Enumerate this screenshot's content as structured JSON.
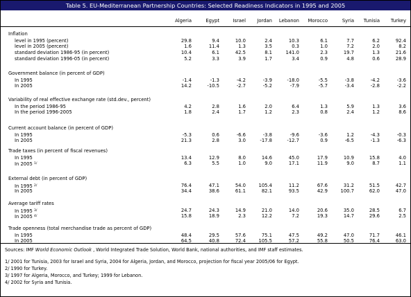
{
  "title": "Table 5. EU-Mediterranean Partnership Countries: Selected Readiness Indicators in 1995 and 2005",
  "columns": [
    "Algeria",
    "Egypt",
    "Israel",
    "Jordan",
    "Lebanon",
    "Morocco",
    "Syria",
    "Tunisia",
    "Turkey"
  ],
  "rows": [
    {
      "kind": "section",
      "label": "Inflation"
    },
    {
      "kind": "data",
      "label": "level in 1995 (percent)",
      "values": [
        "29.8",
        "9.4",
        "10.0",
        "2.4",
        "10.3",
        "6.1",
        "7.7",
        "6.2",
        "92.4"
      ]
    },
    {
      "kind": "data",
      "label": "level in 2005 (percent)",
      "values": [
        "1.6",
        "11.4",
        "1.3",
        "3.5",
        "0.3",
        "1.0",
        "7.2",
        "2.0",
        "8.2"
      ]
    },
    {
      "kind": "data",
      "label": "standard deviation 1986-95 (in percent)",
      "values": [
        "10.4",
        "6.1",
        "42.5",
        "8.1",
        "141.0",
        "2.3",
        "19.7",
        "1.3",
        "21.6"
      ]
    },
    {
      "kind": "data",
      "label": "standard deviation 1996-05 (in percent)",
      "values": [
        "5.2",
        "3.3",
        "3.9",
        "1.7",
        "3.4",
        "0.9",
        "4.8",
        "0.6",
        "28.9"
      ]
    },
    {
      "kind": "section",
      "label": "Government balance (in percent of GDP)"
    },
    {
      "kind": "data",
      "label": "In 1995",
      "values": [
        "-1.4",
        "-1.3",
        "-4.2",
        "-3.9",
        "-18.0",
        "-5.5",
        "-3.8",
        "-4.2",
        "-3.6"
      ]
    },
    {
      "kind": "data",
      "label": "In 2005",
      "values": [
        "14.2",
        "-10.5",
        "-2.7",
        "-5.2",
        "-7.9",
        "-5.7",
        "-3.4",
        "-2.8",
        "-2.2"
      ]
    },
    {
      "kind": "section",
      "label": "Variability of real effective exchange rate (std.dev., percent)"
    },
    {
      "kind": "data",
      "label": "In the period 1986-95",
      "values": [
        "4.2",
        "2.8",
        "1.6",
        "2.0",
        "6.4",
        "1.3",
        "5.9",
        "1.3",
        "3.6"
      ]
    },
    {
      "kind": "data",
      "label": "In the period 1996-2005",
      "values": [
        "1.8",
        "2.4",
        "1.7",
        "1.2",
        "2.3",
        "0.8",
        "2.4",
        "1.2",
        "8.6"
      ]
    },
    {
      "kind": "section",
      "label": "Current account balance (in percent of GDP)"
    },
    {
      "kind": "data",
      "label": "In 1995",
      "values": [
        "-5.3",
        "0.6",
        "-6.6",
        "-3.8",
        "-9.6",
        "-3.6",
        "1.2",
        "-4.3",
        "-0.3"
      ]
    },
    {
      "kind": "data",
      "label": "In 2005",
      "values": [
        "21.3",
        "2.8",
        "3.0",
        "-17.8",
        "-12.7",
        "0.9",
        "-6.5",
        "-1.3",
        "-6.3"
      ]
    },
    {
      "kind": "section",
      "label": "Trade taxes (in percent of fiscal revenues)"
    },
    {
      "kind": "data",
      "label": "In 1995",
      "values": [
        "13.4",
        "12.9",
        "8.0",
        "14.6",
        "45.0",
        "17.9",
        "10.9",
        "15.8",
        "4.0"
      ]
    },
    {
      "kind": "data",
      "label": "In 2005",
      "sup": "1/",
      "values": [
        "6.3",
        "5.5",
        "1.0",
        "9.0",
        "17.1",
        "11.9",
        "9.0",
        "8.7",
        "1.1"
      ]
    },
    {
      "kind": "section",
      "label": "External debt (in percent of GDP)"
    },
    {
      "kind": "data",
      "label": "In 1995",
      "sup": "2/",
      "values": [
        "76.4",
        "47.1",
        "54.0",
        "105.4",
        "11.2",
        "67.6",
        "31.2",
        "51.5",
        "42.7"
      ]
    },
    {
      "kind": "data",
      "label": "In 2005",
      "values": [
        "34.4",
        "38.6",
        "61.1",
        "82.1",
        "93.5",
        "42.9",
        "100.7",
        "62.0",
        "47.0"
      ]
    },
    {
      "kind": "section",
      "label": "Average tariff rates"
    },
    {
      "kind": "data",
      "label": "In 1995",
      "sup": "3/",
      "values": [
        "24.7",
        "24.3",
        "14.9",
        "21.0",
        "14.0",
        "20.6",
        "35.0",
        "28.5",
        "6.7"
      ]
    },
    {
      "kind": "data",
      "label": "In 2005",
      "sup": "4/",
      "values": [
        "15.8",
        "18.9",
        "2.3",
        "12.2",
        "7.2",
        "19.3",
        "14.7",
        "29.6",
        "2.5"
      ]
    },
    {
      "kind": "section",
      "label": "Trade openness (total merchandise trade as percent of GDP)"
    },
    {
      "kind": "data",
      "label": "In 1995",
      "values": [
        "48.4",
        "29.5",
        "57.6",
        "75.1",
        "47.5",
        "49.2",
        "47.0",
        "71.7",
        "46.1"
      ]
    },
    {
      "kind": "data",
      "label": "In 2005",
      "values": [
        "64.5",
        "40.8",
        "72.4",
        "105.5",
        "57.2",
        "55.8",
        "50.5",
        "76.4",
        "63.0"
      ]
    }
  ],
  "sources": {
    "prefix": "Sources: IMF ",
    "italic": "World Economic Outlook",
    "suffix": " , World Integrated Trade Solution, World Bank, national authorities, and IMF staff estimates."
  },
  "footnotes": [
    "1/ 2001 for Tunisia, 2003 for Israel and Syria, 2004 for Algeria, Jordan, and Morocco, projection for fiscal year 2005/06 for Egypt.",
    "2/ 1990 for Turkey.",
    "3/ 1997 for Algeria, Morocco, and Turkey; 1999 for Lebanon.",
    "4/ 2002 for Syria and Tunisia."
  ]
}
